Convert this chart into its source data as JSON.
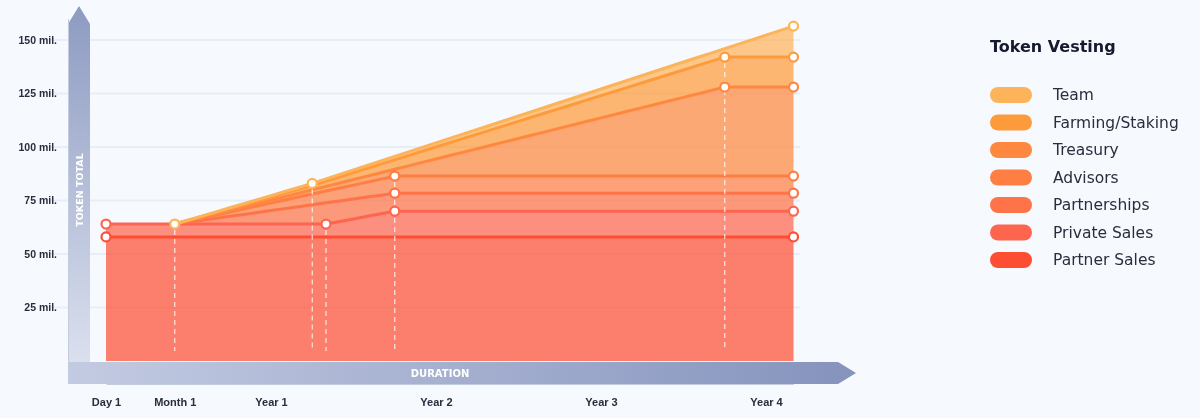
{
  "chart_data": {
    "type": "area",
    "stacked": true,
    "ylabel": "TOKEN TOTAL",
    "xlabel": "DURATION",
    "legend_title": "Token Vesting",
    "legend": "right",
    "grid": "y",
    "categories": [
      "Day 1",
      null,
      null,
      null,
      null,
      "Month 1",
      null,
      null,
      null,
      null,
      null,
      null,
      "Year 1",
      null,
      null,
      null,
      null,
      null,
      null,
      null,
      null,
      null,
      null,
      null,
      "Year 2",
      null,
      null,
      null,
      null,
      null,
      null,
      null,
      null,
      null,
      null,
      null,
      "Year 3",
      null,
      null,
      null,
      null,
      null,
      null,
      null,
      null,
      null,
      null,
      null,
      "Year 4",
      null,
      null
    ],
    "ylim": [
      0,
      160
    ],
    "yticks": [
      {
        "value": 25,
        "label": "25 mil."
      },
      {
        "value": 50,
        "label": "50 mil."
      },
      {
        "value": 75,
        "label": "75 mil."
      },
      {
        "value": 100,
        "label": "100 mil."
      },
      {
        "value": 125,
        "label": "125 mil."
      },
      {
        "value": 150,
        "label": "150 mil."
      }
    ],
    "series": [
      {
        "name": "Partner Sales",
        "color": "#fd4d33",
        "values": [
          58,
          58,
          58,
          58,
          58,
          58,
          58,
          58,
          58,
          58,
          58,
          58,
          58,
          58,
          58,
          58,
          58,
          58,
          58,
          58,
          58,
          58,
          58,
          58,
          58,
          58,
          58,
          58,
          58,
          58,
          58,
          58,
          58,
          58,
          58,
          58,
          58,
          58,
          58,
          58,
          58,
          58,
          58,
          58,
          58,
          58,
          58,
          58,
          58,
          58,
          58
        ]
      },
      {
        "name": "Private Sales",
        "color": "#fe654f",
        "values": [
          6,
          6,
          6,
          6,
          6,
          6,
          6,
          6,
          6,
          6,
          6,
          6,
          6,
          6,
          6,
          6,
          6,
          7.2,
          8.4,
          9.6,
          10.8,
          12,
          12,
          12,
          12,
          12,
          12,
          12,
          12,
          12,
          12,
          12,
          12,
          12,
          12,
          12,
          12,
          12,
          12,
          12,
          12,
          12,
          12,
          12,
          12,
          12,
          12,
          12,
          12,
          12,
          12
        ]
      },
      {
        "name": "Partnerships",
        "color": "#fe7348",
        "values": [
          null,
          null,
          null,
          null,
          null,
          0,
          0.9,
          1.8,
          2.7,
          3.6,
          4.5,
          5.4,
          6.3,
          7.2,
          8.1,
          9,
          9.9,
          9.6,
          9.3,
          9,
          8.7,
          8.4,
          8.4,
          8.4,
          8.4,
          8.4,
          8.4,
          8.4,
          8.4,
          8.4,
          8.4,
          8.4,
          8.4,
          8.4,
          8.4,
          8.4,
          8.4,
          8.4,
          8.4,
          8.4,
          8.4,
          8.4,
          8.4,
          8.4,
          8.4,
          8.4,
          8.4,
          8.4,
          8.4,
          8.4,
          8.4
        ]
      },
      {
        "name": "Advisors",
        "color": "#fe7e44",
        "values": [
          null,
          null,
          null,
          null,
          null,
          0,
          0.5,
          1,
          1.5,
          2,
          2.5,
          3,
          3.5,
          4,
          4.5,
          5,
          5.5,
          6,
          6.5,
          7,
          7.5,
          8,
          8,
          8,
          8,
          8,
          8,
          8,
          8,
          8,
          8,
          8,
          8,
          8,
          8,
          8,
          8,
          8,
          8,
          8,
          8,
          8,
          8,
          8,
          8,
          8,
          8,
          8,
          8,
          8,
          8
        ]
      },
      {
        "name": "Treasury",
        "color": "#fe8840",
        "values": [
          null,
          null,
          null,
          null,
          null,
          0,
          0.2,
          0.4,
          0.6,
          0.8,
          1,
          1.2,
          1.4,
          1.6,
          1.8,
          2,
          2.2,
          2.4,
          2.6,
          2.8,
          3,
          3.2,
          4.8,
          6.4,
          8,
          9.6,
          11.2,
          12.8,
          14.4,
          16,
          17.6,
          19.2,
          20.8,
          22.4,
          24,
          25.6,
          27.2,
          28.8,
          30.4,
          32,
          33.6,
          35.2,
          36.8,
          38.4,
          40,
          41.6,
          41.6,
          41.6,
          41.6,
          41.6,
          41.6
        ]
      },
      {
        "name": "Farming/Staking",
        "color": "#fd9b3c",
        "values": [
          null,
          null,
          null,
          null,
          null,
          0,
          0.2,
          0.4,
          0.6,
          0.8,
          1,
          1.2,
          1.4,
          1.6,
          1.8,
          2,
          2.4,
          2.8,
          3.2,
          3.6,
          4,
          4.4,
          4.8,
          5.2,
          5.6,
          6,
          6.4,
          6.8,
          7.2,
          7.6,
          8,
          8.4,
          8.8,
          9.2,
          9.6,
          10,
          10.4,
          10.8,
          11.2,
          11.6,
          12,
          12.4,
          12.8,
          13.2,
          13.6,
          14,
          14,
          14,
          14,
          14,
          14
        ]
      },
      {
        "name": "Team",
        "color": "#fdb35a",
        "values": [
          null,
          null,
          null,
          null,
          null,
          0,
          0.1,
          0.2,
          0.3,
          0.4,
          0.5,
          0.6,
          0.7,
          0.8,
          0.9,
          1,
          1.1,
          1.2,
          1.3,
          1.4,
          1.5,
          1.6,
          1.7,
          1.8,
          1.9,
          2,
          2.1,
          2.2,
          2.3,
          2.4,
          2.5,
          2.6,
          2.7,
          2.8,
          2.9,
          3,
          3.1,
          3.2,
          3.3,
          3.4,
          3.5,
          3.6,
          3.7,
          3.8,
          3.9,
          4,
          6.1,
          8.2,
          10.3,
          12.4,
          14.5
        ]
      },
      {
        "type": "scatter",
        "color": "#fd4d33",
        "values": [
          58,
          null,
          null,
          null,
          null,
          null,
          null,
          null,
          null,
          null,
          null,
          null,
          null,
          null,
          null,
          null,
          null,
          null,
          null,
          null,
          null,
          null,
          null,
          null,
          null,
          null,
          null,
          null,
          null,
          null,
          null,
          null,
          null,
          null,
          null,
          null,
          null,
          null,
          null,
          null,
          null,
          null,
          null,
          null,
          null,
          null,
          null,
          null,
          null,
          null,
          58
        ]
      },
      {
        "type": "scatter",
        "color": "#fe654f",
        "values": [
          64,
          null,
          null,
          null,
          null,
          null,
          null,
          null,
          null,
          null,
          null,
          null,
          null,
          null,
          null,
          null,
          64,
          null,
          null,
          null,
          null,
          70,
          null,
          null,
          null,
          null,
          null,
          null,
          null,
          null,
          null,
          null,
          null,
          null,
          null,
          null,
          null,
          null,
          null,
          null,
          null,
          null,
          null,
          null,
          null,
          null,
          null,
          null,
          null,
          null,
          70
        ]
      },
      {
        "type": "scatter",
        "color": "#fe7348",
        "values": [
          null,
          null,
          null,
          null,
          null,
          null,
          null,
          null,
          null,
          null,
          null,
          null,
          null,
          null,
          null,
          null,
          null,
          null,
          null,
          null,
          null,
          78.4,
          null,
          null,
          null,
          null,
          null,
          null,
          null,
          null,
          null,
          null,
          null,
          null,
          null,
          null,
          null,
          null,
          null,
          null,
          null,
          null,
          null,
          null,
          null,
          null,
          null,
          null,
          null,
          null,
          78.4
        ]
      },
      {
        "type": "scatter",
        "color": "#fe7e44",
        "values": [
          null,
          null,
          null,
          null,
          null,
          null,
          null,
          null,
          null,
          null,
          null,
          null,
          null,
          null,
          null,
          null,
          null,
          null,
          null,
          null,
          null,
          86.4,
          null,
          null,
          null,
          null,
          null,
          null,
          null,
          null,
          null,
          null,
          null,
          null,
          null,
          null,
          null,
          null,
          null,
          null,
          null,
          null,
          null,
          null,
          null,
          null,
          null,
          null,
          null,
          null,
          86.4
        ]
      },
      {
        "type": "scatter",
        "color": "#fe8840",
        "values": [
          null,
          null,
          null,
          null,
          null,
          null,
          null,
          null,
          null,
          null,
          null,
          null,
          null,
          null,
          null,
          null,
          null,
          null,
          null,
          null,
          null,
          null,
          null,
          null,
          null,
          null,
          null,
          null,
          null,
          null,
          null,
          null,
          null,
          null,
          null,
          null,
          null,
          null,
          null,
          null,
          null,
          null,
          null,
          null,
          null,
          128,
          null,
          null,
          null,
          null,
          128
        ]
      },
      {
        "type": "scatter",
        "color": "#fd9b3c",
        "values": [
          null,
          null,
          null,
          null,
          null,
          null,
          null,
          null,
          null,
          null,
          null,
          null,
          null,
          null,
          null,
          null,
          null,
          null,
          null,
          null,
          null,
          null,
          null,
          null,
          null,
          null,
          null,
          null,
          null,
          null,
          null,
          null,
          null,
          null,
          null,
          null,
          null,
          null,
          null,
          null,
          null,
          null,
          null,
          null,
          null,
          142,
          null,
          null,
          null,
          null,
          142
        ]
      },
      {
        "type": "scatter",
        "color": "#fdb35a",
        "values": [
          null,
          null,
          null,
          null,
          null,
          64,
          null,
          null,
          null,
          null,
          null,
          null,
          null,
          null,
          null,
          83,
          null,
          null,
          null,
          null,
          null,
          null,
          null,
          null,
          null,
          null,
          null,
          null,
          null,
          null,
          null,
          null,
          null,
          null,
          null,
          null,
          null,
          null,
          null,
          null,
          null,
          null,
          null,
          null,
          null,
          null,
          null,
          null,
          null,
          null,
          156.5
        ]
      }
    ]
  }
}
